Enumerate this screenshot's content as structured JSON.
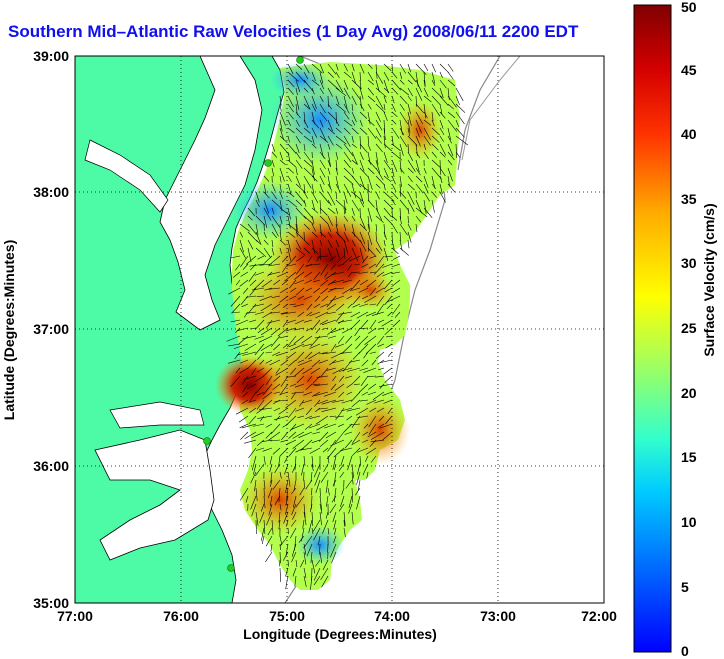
{
  "title": "Southern Mid–Atlantic Raw Velocities (1 Day Avg) 2008/06/11 2200 EDT",
  "xlabel": "Longitude (Degrees:Minutes)",
  "ylabel": "Latitude (Degrees:Minutes)",
  "x_ticks": [
    "77:00",
    "76:00",
    "75:00",
    "74:00",
    "73:00",
    "72:00"
  ],
  "y_ticks": [
    "39:00",
    "38:00",
    "37:00",
    "36:00",
    "35:00"
  ],
  "colorbar": {
    "label": "Surface Velocity (cm/s)",
    "ticks": [
      "0",
      "5",
      "10",
      "15",
      "20",
      "25",
      "30",
      "35",
      "40",
      "45",
      "50"
    ],
    "range": [
      0,
      50
    ],
    "colormap": "jet"
  },
  "colors": {
    "land": "#4dfaa6",
    "title": "#1010ee",
    "grid": "#000000"
  },
  "map_extent": {
    "lon_range": [
      -77,
      -72
    ],
    "lat_range": [
      35,
      39
    ]
  },
  "hf_radar_sites": [
    "site-1",
    "site-2",
    "site-3",
    "site-4"
  ]
}
